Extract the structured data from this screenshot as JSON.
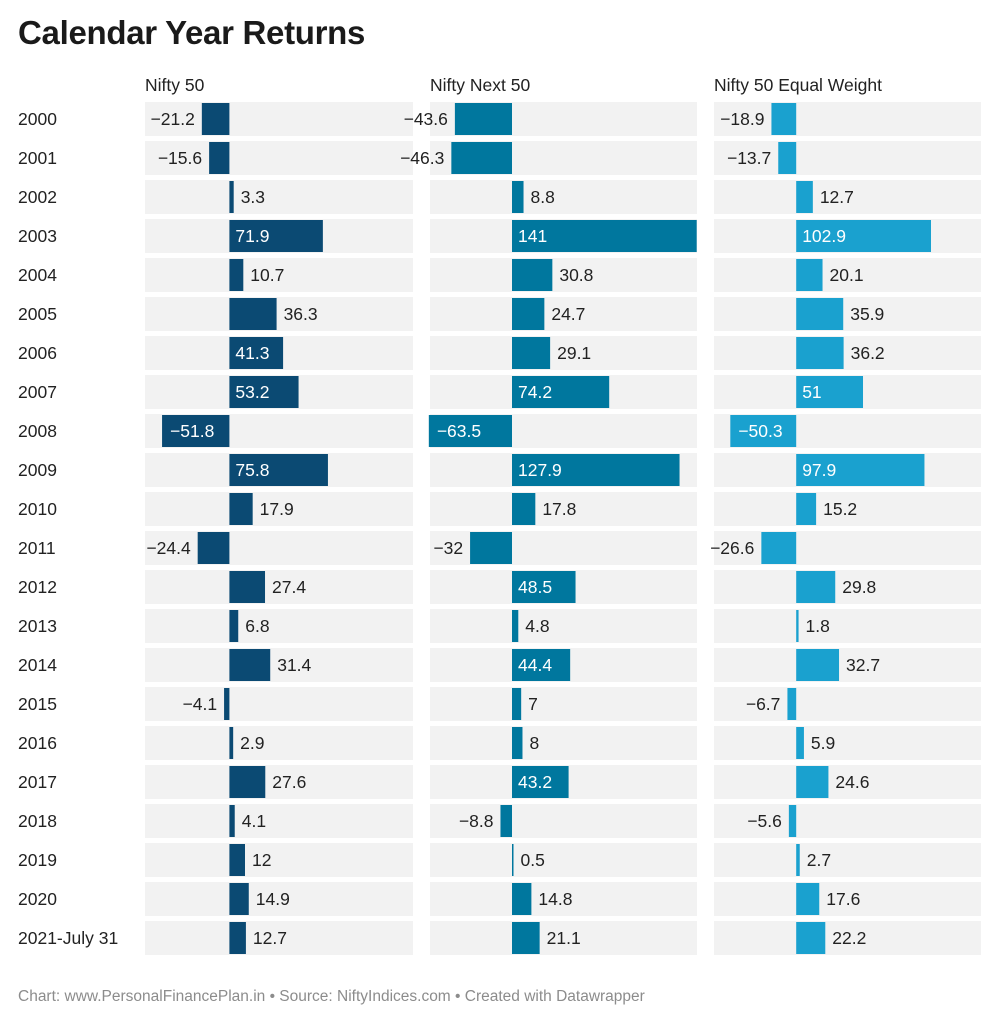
{
  "title": "Calendar Year Returns",
  "footer": "Chart: www.PersonalFinancePlan.in • Source: NiftyIndices.com • Created with Datawrapper",
  "chart_data": {
    "type": "bar",
    "orientation": "horizontal",
    "title": "Calendar Year Returns",
    "categories": [
      "2000",
      "2001",
      "2002",
      "2003",
      "2004",
      "2005",
      "2006",
      "2007",
      "2008",
      "2009",
      "2010",
      "2011",
      "2012",
      "2013",
      "2014",
      "2015",
      "2016",
      "2017",
      "2018",
      "2019",
      "2020",
      "2021-July 31"
    ],
    "series": [
      {
        "name": "Nifty 50",
        "color": "#0b4a73",
        "values": [
          -21.2,
          -15.6,
          3.3,
          71.9,
          10.7,
          36.3,
          41.3,
          53.2,
          -51.8,
          75.8,
          17.9,
          -24.4,
          27.4,
          6.8,
          31.4,
          -4.1,
          2.9,
          27.6,
          4.1,
          12,
          14.9,
          12.7
        ]
      },
      {
        "name": "Nifty Next 50",
        "color": "#00779e",
        "values": [
          -43.6,
          -46.3,
          8.8,
          141,
          30.8,
          24.7,
          29.1,
          74.2,
          -63.5,
          127.9,
          17.8,
          -32,
          48.5,
          4.8,
          44.4,
          7,
          8,
          43.2,
          -8.8,
          0.5,
          14.8,
          21.1
        ]
      },
      {
        "name": "Nifty 50 Equal Weight",
        "color": "#1aa1cf",
        "values": [
          -18.9,
          -13.7,
          12.7,
          102.9,
          20.1,
          35.9,
          36.2,
          51,
          -50.3,
          97.9,
          15.2,
          -26.6,
          29.8,
          1.8,
          32.7,
          -6.7,
          5.9,
          24.6,
          -5.6,
          2.7,
          17.6,
          22.2
        ]
      }
    ]
  }
}
